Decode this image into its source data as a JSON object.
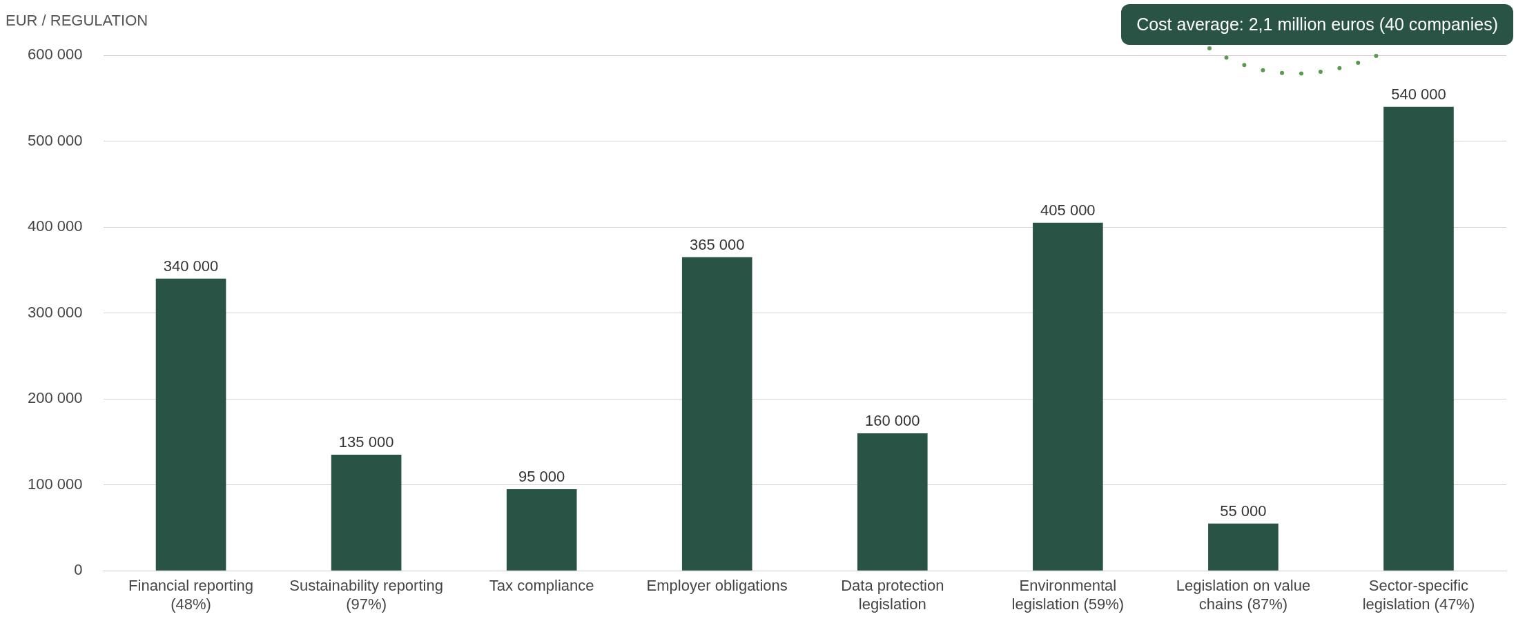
{
  "chart_data": {
    "type": "bar",
    "ylabel": "EUR / REGULATION",
    "categories": [
      "Financial reporting (48%)",
      "Sustainability reporting (97%)",
      "Tax compliance",
      "Employer obligations",
      "Data protection legislation",
      "Environmental legislation (59%)",
      "Legislation on value chains (87%)",
      "Sector-specific legislation (47%)"
    ],
    "values": [
      340000,
      135000,
      95000,
      365000,
      160000,
      405000,
      55000,
      540000
    ],
    "value_labels": [
      "340 000",
      "135 000",
      "95 000",
      "365 000",
      "160 000",
      "405 000",
      "55 000",
      "540 000"
    ],
    "color": "#285345",
    "ylim": [
      0,
      600000
    ],
    "yticks": [
      {
        "value": 0,
        "label": "0"
      },
      {
        "value": 100000,
        "label": "100 000"
      },
      {
        "value": 200000,
        "label": "200 000"
      },
      {
        "value": 300000,
        "label": "300 000"
      },
      {
        "value": 400000,
        "label": "400 000"
      },
      {
        "value": 500000,
        "label": "500 000"
      },
      {
        "value": 600000,
        "label": "600 000"
      }
    ],
    "grid": "y",
    "legend": false,
    "annotations": [
      "Cost average: 2,1 million euros (40 companies)"
    ]
  }
}
